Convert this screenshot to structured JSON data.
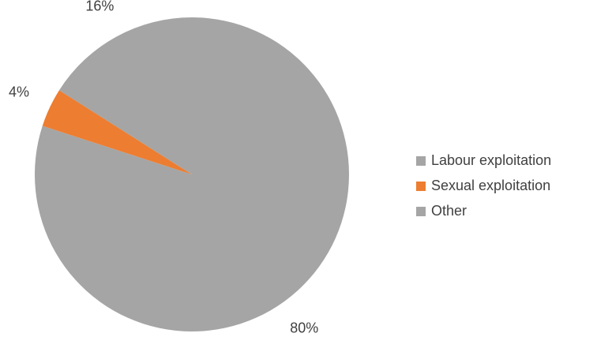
{
  "chart_data": {
    "type": "pie",
    "categories": [
      "Labour exploitation",
      "Sexual exploitation",
      "Other"
    ],
    "values": [
      80,
      4,
      16
    ],
    "value_labels": [
      "80%",
      "4%",
      "16%"
    ],
    "colors": [
      "#a5a5a5",
      "#ed7d31",
      "#a5a5a5"
    ],
    "legend": "right"
  }
}
